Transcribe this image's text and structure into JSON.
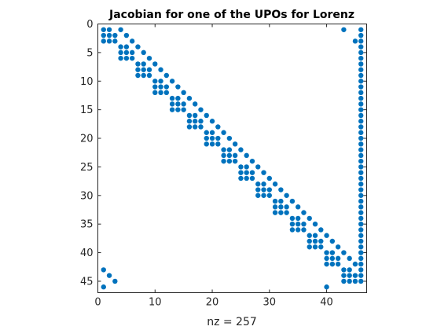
{
  "chart_data": {
    "type": "scatter",
    "subtype": "sparsity-pattern",
    "title": "Jacobian for one of the UPOs for Lorenz",
    "xlabel": "nz = 257",
    "ylabel": "",
    "xlim": [
      0,
      47
    ],
    "ylim": [
      0,
      47
    ],
    "y_reversed": true,
    "xticks": [
      0,
      10,
      20,
      30,
      40
    ],
    "yticks": [
      0,
      5,
      10,
      15,
      20,
      25,
      30,
      35,
      40,
      45
    ],
    "grid": false,
    "marker_color": "#0072bd",
    "nonzero_pattern": {
      "diagonal_blocks": {
        "block_size": 3,
        "starts": [
          1,
          4,
          7,
          10,
          13,
          16,
          19,
          22,
          25,
          28,
          31,
          34,
          37,
          40,
          43
        ],
        "entries_per_block": [
          [
            0,
            0
          ],
          [
            0,
            1
          ],
          [
            1,
            0
          ],
          [
            1,
            1
          ],
          [
            1,
            2
          ],
          [
            2,
            0
          ],
          [
            2,
            1
          ],
          [
            2,
            2
          ]
        ],
        "coupling_offset": 3,
        "coupling_entries": [
          [
            0,
            0
          ],
          [
            1,
            1
          ],
          [
            2,
            2
          ]
        ]
      },
      "last_column": {
        "column": 46,
        "rows_from": 1,
        "rows_to": 45
      },
      "extra_points": [
        {
          "x": 43,
          "y": 1
        },
        {
          "x": 45,
          "y": 3
        },
        {
          "x": 1,
          "y": 43
        },
        {
          "x": 2,
          "y": 44
        },
        {
          "x": 1,
          "y": 46
        },
        {
          "x": 3,
          "y": 45
        },
        {
          "x": 40,
          "y": 46
        }
      ]
    }
  }
}
